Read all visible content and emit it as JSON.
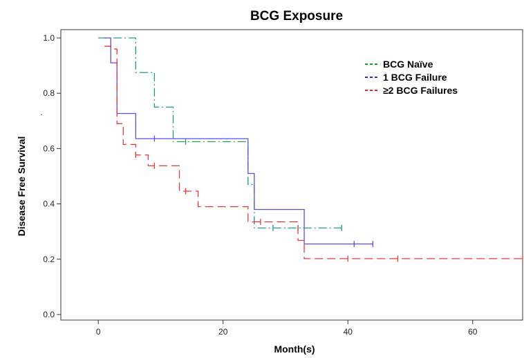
{
  "chart_data": {
    "type": "line",
    "title": "BCG Exposure",
    "xlabel": "Month(s)",
    "ylabel": "Disease Free Survival",
    "xlim": [
      -6,
      68
    ],
    "ylim": [
      -0.02,
      1.03
    ],
    "x_ticks": [
      0,
      20,
      40,
      60
    ],
    "x_tick_labels": [
      "0",
      "20",
      "40",
      "60"
    ],
    "y_ticks": [
      0.0,
      0.2,
      0.4,
      0.6,
      0.8,
      1.0
    ],
    "y_tick_labels": [
      "0.0",
      "0.2",
      "0.4",
      "0.6",
      "0.8",
      "1.0"
    ],
    "stray_mark": ".",
    "grid": false,
    "legend_position": "top-right",
    "series": [
      {
        "name": "BCG Naïve",
        "color": "#1a9a82",
        "legend_color": "#1f9e1f",
        "dash": "dash-dot",
        "steps": [
          [
            0,
            1.0
          ],
          [
            6,
            0.875
          ],
          [
            9,
            0.75
          ],
          [
            12,
            0.625
          ],
          [
            24,
            0.47
          ],
          [
            25,
            0.313
          ],
          [
            39,
            0.313
          ]
        ],
        "censored": [
          [
            14,
            0.625
          ],
          [
            25,
            0.34
          ],
          [
            28,
            0.313
          ],
          [
            32,
            0.313
          ],
          [
            39,
            0.313
          ]
        ]
      },
      {
        "name": "1 BCG Failure",
        "color": "#5a4fe0",
        "legend_color": "#2a2ae6",
        "dash": "solid",
        "steps": [
          [
            1,
            1.0
          ],
          [
            2,
            0.91
          ],
          [
            3,
            0.727
          ],
          [
            6,
            0.636
          ],
          [
            24,
            0.51
          ],
          [
            25,
            0.38
          ],
          [
            33,
            0.255
          ],
          [
            44,
            0.255
          ]
        ],
        "censored": [
          [
            9,
            0.636
          ],
          [
            41,
            0.255
          ],
          [
            44,
            0.255
          ]
        ]
      },
      {
        "name": "≥2 BCG Failures",
        "color": "#e8363a",
        "legend_color": "#e82020",
        "dash": "long-dash",
        "steps": [
          [
            1,
            0.97
          ],
          [
            2,
            0.96
          ],
          [
            3,
            0.69
          ],
          [
            4,
            0.615
          ],
          [
            6,
            0.577
          ],
          [
            8,
            0.538
          ],
          [
            13,
            0.446
          ],
          [
            16,
            0.39
          ],
          [
            24,
            0.335
          ],
          [
            32,
            0.268
          ],
          [
            33,
            0.202
          ],
          [
            68,
            0.202
          ]
        ],
        "censored": [
          [
            6,
            0.577
          ],
          [
            9,
            0.538
          ],
          [
            14,
            0.446
          ],
          [
            26,
            0.335
          ],
          [
            40,
            0.202
          ],
          [
            48,
            0.202
          ],
          [
            68,
            0.202
          ]
        ]
      }
    ]
  }
}
